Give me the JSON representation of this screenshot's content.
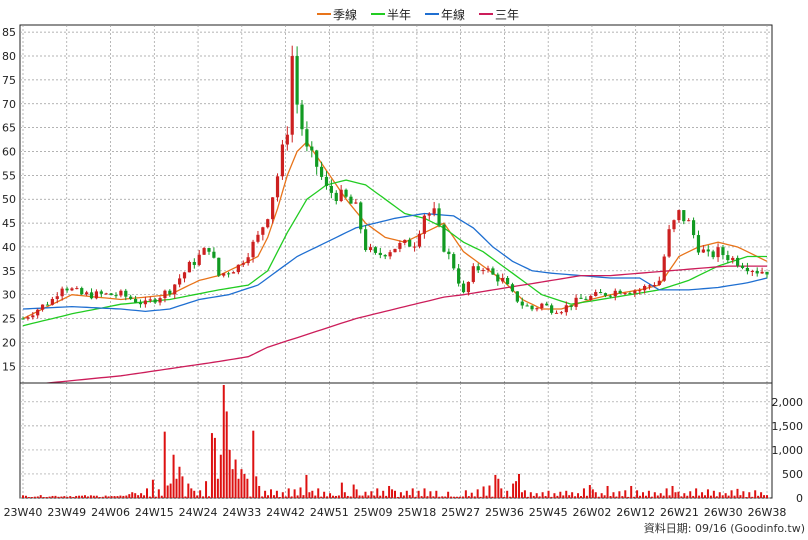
{
  "legend": {
    "items": [
      {
        "label": "季線",
        "color": "#e8741a"
      },
      {
        "label": "半年",
        "color": "#22cc22"
      },
      {
        "label": "年線",
        "color": "#1f6fd1"
      },
      {
        "label": "三年",
        "color": "#cc1d5a"
      }
    ]
  },
  "source_note": "資料日期: 09/16  (Goodinfo.tw)",
  "colors": {
    "up": "#cc2020",
    "down": "#119a22",
    "volume": "#dd1111",
    "grid": "#9a9a9a"
  },
  "chart_data": [
    {
      "type": "candlestick",
      "title": "",
      "y_ticks": [
        15,
        20,
        25,
        30,
        35,
        40,
        45,
        50,
        55,
        60,
        65,
        70,
        75,
        80,
        85
      ],
      "ylim": [
        11.5,
        86.5
      ],
      "grid": true,
      "legend_position": "top",
      "x_ticks": [
        "23W40",
        "23W49",
        "24W06",
        "24W15",
        "24W24",
        "24W33",
        "24W42",
        "24W51",
        "25W09",
        "25W18",
        "25W27",
        "25W36",
        "25W45",
        "26W02",
        "26W12",
        "26W21",
        "26W30",
        "26W38"
      ],
      "close_anchors": [
        [
          0,
          25
        ],
        [
          3,
          27
        ],
        [
          6,
          29
        ],
        [
          8,
          32
        ],
        [
          12,
          30
        ],
        [
          20,
          30
        ],
        [
          25,
          28
        ],
        [
          30,
          31
        ],
        [
          34,
          36
        ],
        [
          38,
          40
        ],
        [
          40,
          34
        ],
        [
          44,
          36
        ],
        [
          48,
          42
        ],
        [
          50,
          47
        ],
        [
          52,
          55
        ],
        [
          54,
          65
        ],
        [
          55,
          80
        ],
        [
          56,
          70
        ],
        [
          58,
          60
        ],
        [
          60,
          57
        ],
        [
          62,
          52
        ],
        [
          64,
          51
        ],
        [
          66,
          50
        ],
        [
          68,
          48
        ],
        [
          70,
          40
        ],
        [
          72,
          38
        ],
        [
          76,
          40
        ],
        [
          80,
          41
        ],
        [
          82,
          47
        ],
        [
          84,
          47
        ],
        [
          86,
          40
        ],
        [
          88,
          36
        ],
        [
          90,
          30
        ],
        [
          92,
          35
        ],
        [
          94,
          36
        ],
        [
          96,
          34
        ],
        [
          98,
          33
        ],
        [
          100,
          30
        ],
        [
          102,
          28
        ],
        [
          104,
          27
        ],
        [
          106,
          28
        ],
        [
          108,
          27
        ],
        [
          110,
          27
        ],
        [
          114,
          29
        ],
        [
          118,
          30
        ],
        [
          122,
          31
        ],
        [
          126,
          31
        ],
        [
          130,
          33
        ],
        [
          132,
          43
        ],
        [
          134,
          47
        ],
        [
          136,
          45
        ],
        [
          138,
          40
        ],
        [
          140,
          38
        ],
        [
          142,
          39
        ],
        [
          146,
          37
        ],
        [
          150,
          35
        ],
        [
          152,
          35
        ]
      ],
      "series": [
        {
          "name": "季線",
          "color": "#e8741a",
          "points": [
            [
              0,
              25
            ],
            [
              10,
              30
            ],
            [
              20,
              29
            ],
            [
              30,
              30
            ],
            [
              36,
              33
            ],
            [
              40,
              34
            ],
            [
              44,
              36
            ],
            [
              48,
              38
            ],
            [
              50,
              42
            ],
            [
              52,
              48
            ],
            [
              54,
              55
            ],
            [
              56,
              60
            ],
            [
              58,
              62
            ],
            [
              60,
              59
            ],
            [
              62,
              56
            ],
            [
              64,
              53
            ],
            [
              66,
              50
            ],
            [
              70,
              45
            ],
            [
              74,
              42
            ],
            [
              78,
              41
            ],
            [
              82,
              43
            ],
            [
              86,
              45
            ],
            [
              90,
              39
            ],
            [
              94,
              36
            ],
            [
              98,
              33
            ],
            [
              102,
              29
            ],
            [
              106,
              27
            ],
            [
              110,
              27
            ],
            [
              116,
              29
            ],
            [
              120,
              30
            ],
            [
              126,
              31
            ],
            [
              130,
              32
            ],
            [
              134,
              38
            ],
            [
              138,
              40
            ],
            [
              142,
              41
            ],
            [
              146,
              40
            ],
            [
              150,
              38
            ],
            [
              152,
              37
            ]
          ]
        },
        {
          "name": "半年",
          "color": "#22cc22",
          "points": [
            [
              0,
              23.5
            ],
            [
              10,
              26
            ],
            [
              20,
              28
            ],
            [
              30,
              29
            ],
            [
              40,
              31
            ],
            [
              46,
              32
            ],
            [
              50,
              35
            ],
            [
              54,
              43
            ],
            [
              58,
              50
            ],
            [
              62,
              53
            ],
            [
              66,
              54
            ],
            [
              70,
              53
            ],
            [
              74,
              50
            ],
            [
              78,
              47
            ],
            [
              82,
              46
            ],
            [
              86,
              44
            ],
            [
              90,
              41
            ],
            [
              94,
              39
            ],
            [
              98,
              36
            ],
            [
              102,
              33
            ],
            [
              106,
              30
            ],
            [
              112,
              28
            ],
            [
              118,
              29
            ],
            [
              124,
              30
            ],
            [
              130,
              31
            ],
            [
              136,
              33
            ],
            [
              142,
              36
            ],
            [
              148,
              38
            ],
            [
              152,
              38
            ]
          ]
        },
        {
          "name": "年線",
          "color": "#1f6fd1",
          "points": [
            [
              0,
              27
            ],
            [
              10,
              27.5
            ],
            [
              20,
              27
            ],
            [
              25,
              26.5
            ],
            [
              30,
              27
            ],
            [
              36,
              29
            ],
            [
              42,
              30
            ],
            [
              48,
              32
            ],
            [
              52,
              35
            ],
            [
              56,
              38
            ],
            [
              60,
              40
            ],
            [
              64,
              42
            ],
            [
              68,
              44
            ],
            [
              72,
              45
            ],
            [
              76,
              46
            ],
            [
              82,
              47
            ],
            [
              88,
              46.5
            ],
            [
              92,
              44
            ],
            [
              96,
              40
            ],
            [
              100,
              37
            ],
            [
              104,
              35
            ],
            [
              108,
              34.5
            ],
            [
              114,
              34
            ],
            [
              120,
              33.5
            ],
            [
              126,
              33.5
            ],
            [
              130,
              31
            ],
            [
              136,
              31
            ],
            [
              142,
              31.5
            ],
            [
              148,
              32.5
            ],
            [
              152,
              33.5
            ]
          ]
        },
        {
          "name": "三年",
          "color": "#cc1d5a",
          "points": [
            [
              0,
              11
            ],
            [
              10,
              12
            ],
            [
              20,
              13
            ],
            [
              30,
              14.5
            ],
            [
              40,
              16
            ],
            [
              46,
              17
            ],
            [
              50,
              19
            ],
            [
              56,
              21
            ],
            [
              62,
              23
            ],
            [
              68,
              25
            ],
            [
              74,
              26.5
            ],
            [
              80,
              28
            ],
            [
              86,
              29.5
            ],
            [
              90,
              30
            ],
            [
              96,
              31
            ],
            [
              102,
              32
            ],
            [
              108,
              33
            ],
            [
              114,
              34
            ],
            [
              120,
              34
            ],
            [
              126,
              34.5
            ],
            [
              132,
              35
            ],
            [
              138,
              35.5
            ],
            [
              144,
              36
            ],
            [
              150,
              36
            ],
            [
              152,
              36
            ]
          ]
        }
      ]
    },
    {
      "type": "bar",
      "title": "",
      "y_ticks": [
        "0",
        "500",
        "1,000",
        "1,500",
        "2,000"
      ],
      "ylim": [
        0,
        2350
      ],
      "grid": true,
      "volume_spikes": [
        [
          28,
          50
        ],
        [
          30,
          40
        ],
        [
          32,
          40
        ],
        [
          36,
          80
        ],
        [
          37,
          120
        ],
        [
          38,
          100
        ],
        [
          40,
          100
        ],
        [
          42,
          200
        ],
        [
          44,
          380
        ],
        [
          46,
          180
        ],
        [
          48,
          1380
        ],
        [
          49,
          260
        ],
        [
          50,
          300
        ],
        [
          51,
          900
        ],
        [
          52,
          400
        ],
        [
          53,
          650
        ],
        [
          54,
          450
        ],
        [
          56,
          300
        ],
        [
          57,
          200
        ],
        [
          58,
          150
        ],
        [
          60,
          160
        ],
        [
          62,
          350
        ],
        [
          64,
          1350
        ],
        [
          65,
          1250
        ],
        [
          66,
          400
        ],
        [
          67,
          900
        ],
        [
          68,
          2350
        ],
        [
          69,
          1800
        ],
        [
          70,
          1000
        ],
        [
          71,
          600
        ],
        [
          72,
          800
        ],
        [
          73,
          400
        ],
        [
          74,
          600
        ],
        [
          75,
          500
        ],
        [
          76,
          400
        ],
        [
          78,
          1400
        ],
        [
          79,
          450
        ],
        [
          80,
          250
        ],
        [
          82,
          150
        ],
        [
          84,
          180
        ],
        [
          86,
          150
        ],
        [
          88,
          120
        ],
        [
          90,
          200
        ],
        [
          92,
          180
        ],
        [
          94,
          220
        ],
        [
          96,
          480
        ],
        [
          97,
          120
        ],
        [
          98,
          150
        ],
        [
          100,
          200
        ],
        [
          102,
          130
        ],
        [
          104,
          100
        ],
        [
          108,
          320
        ],
        [
          109,
          120
        ],
        [
          112,
          280
        ],
        [
          113,
          180
        ],
        [
          116,
          130
        ],
        [
          118,
          140
        ],
        [
          120,
          200
        ],
        [
          122,
          150
        ],
        [
          124,
          250
        ],
        [
          125,
          180
        ],
        [
          126,
          150
        ],
        [
          128,
          120
        ],
        [
          130,
          150
        ],
        [
          132,
          200
        ],
        [
          134,
          150
        ],
        [
          136,
          200
        ],
        [
          138,
          140
        ],
        [
          140,
          150
        ],
        [
          144,
          130
        ],
        [
          150,
          160
        ],
        [
          152,
          110
        ],
        [
          154,
          180
        ],
        [
          156,
          240
        ],
        [
          158,
          260
        ],
        [
          160,
          480
        ],
        [
          161,
          400
        ],
        [
          162,
          200
        ],
        [
          164,
          150
        ],
        [
          166,
          300
        ],
        [
          167,
          350
        ],
        [
          168,
          500
        ],
        [
          169,
          120
        ],
        [
          170,
          160
        ],
        [
          172,
          120
        ],
        [
          174,
          100
        ],
        [
          176,
          120
        ],
        [
          178,
          150
        ],
        [
          180,
          100
        ],
        [
          182,
          130
        ],
        [
          184,
          150
        ],
        [
          186,
          120
        ],
        [
          188,
          100
        ],
        [
          190,
          200
        ],
        [
          192,
          270
        ],
        [
          193,
          180
        ],
        [
          194,
          120
        ],
        [
          196,
          100
        ],
        [
          198,
          250
        ],
        [
          200,
          120
        ],
        [
          202,
          140
        ],
        [
          204,
          160
        ],
        [
          206,
          250
        ],
        [
          208,
          160
        ],
        [
          210,
          120
        ],
        [
          212,
          150
        ],
        [
          214,
          120
        ],
        [
          216,
          100
        ],
        [
          218,
          200
        ],
        [
          220,
          250
        ],
        [
          221,
          120
        ],
        [
          222,
          130
        ],
        [
          224,
          100
        ],
        [
          226,
          140
        ],
        [
          228,
          200
        ],
        [
          230,
          120
        ],
        [
          232,
          180
        ],
        [
          234,
          150
        ],
        [
          236,
          120
        ],
        [
          238,
          100
        ],
        [
          240,
          160
        ],
        [
          242,
          190
        ],
        [
          244,
          140
        ],
        [
          246,
          120
        ],
        [
          248,
          160
        ],
        [
          250,
          120
        ]
      ]
    }
  ]
}
